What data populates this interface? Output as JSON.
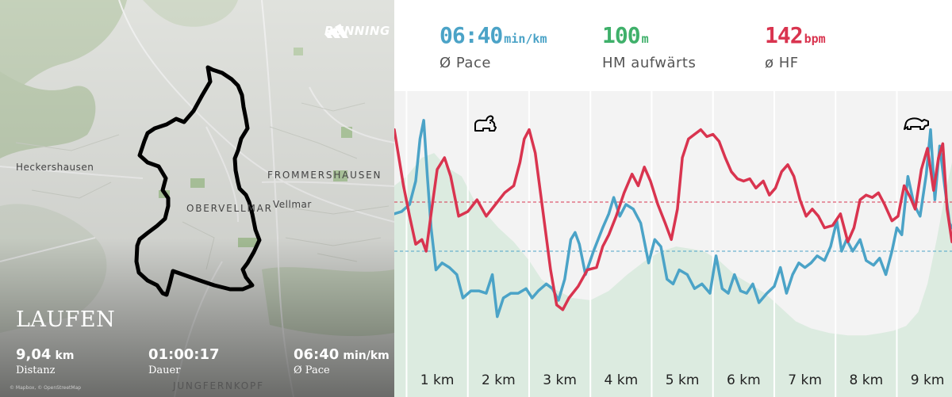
{
  "map": {
    "brand": "RUNNING",
    "places": {
      "heckershausen": "Heckershausen",
      "frommershausen": "FROMMERSHAUSEN",
      "obervellmar": "OBERVELLMAR",
      "vellmar": "Vellmar",
      "jungfernkopf": "JUNGFERNKOPF"
    },
    "activity": "LAUFEN",
    "stats": {
      "distance": {
        "value": "9,04",
        "unit": "km",
        "label": "Distanz"
      },
      "duration": {
        "value": "01:00:17",
        "unit": "",
        "label": "Dauer"
      },
      "pace": {
        "value": "06:40",
        "unit": "min/km",
        "label": "Ø Pace"
      }
    },
    "attribution": "© Mapbox, © OpenStreetMap"
  },
  "header": {
    "pace": {
      "value": "06:40",
      "unit": "min/km",
      "label": "Ø Pace",
      "color": "#4ba3c7"
    },
    "elevation": {
      "value": "100",
      "unit": "m",
      "label": "HM aufwärts",
      "color": "#3fb06a"
    },
    "hr": {
      "value": "142",
      "unit": "bpm",
      "label": "ø HF",
      "color": "#d9344f"
    }
  },
  "chart_data": {
    "type": "line",
    "x_range": [
      0.3,
      9.4
    ],
    "xtick_values": [
      1,
      2,
      3,
      4,
      5,
      6,
      7,
      8,
      9
    ],
    "xtick_labels": [
      "1 km",
      "2 km",
      "3 km",
      "4 km",
      "5 km",
      "6 km",
      "7 km",
      "8 km",
      "9 km"
    ],
    "grid_x": true,
    "icons": {
      "fast": "rabbit-icon",
      "slow": "turtle-icon"
    },
    "elevation": {
      "color": "#dcebe0",
      "values": [
        [
          0.3,
          0.68
        ],
        [
          0.5,
          0.72
        ],
        [
          0.75,
          0.8
        ],
        [
          0.95,
          0.82
        ],
        [
          1.15,
          0.76
        ],
        [
          1.4,
          0.72
        ],
        [
          1.6,
          0.62
        ],
        [
          1.8,
          0.56
        ],
        [
          2.0,
          0.5
        ],
        [
          2.25,
          0.44
        ],
        [
          2.5,
          0.36
        ],
        [
          2.7,
          0.28
        ],
        [
          2.9,
          0.24
        ],
        [
          3.2,
          0.2
        ],
        [
          3.5,
          0.19
        ],
        [
          3.8,
          0.23
        ],
        [
          4.1,
          0.3
        ],
        [
          4.4,
          0.36
        ],
        [
          4.65,
          0.4
        ],
        [
          4.9,
          0.42
        ],
        [
          5.15,
          0.41
        ],
        [
          5.35,
          0.4
        ],
        [
          5.6,
          0.36
        ],
        [
          5.85,
          0.3
        ],
        [
          6.1,
          0.26
        ],
        [
          6.35,
          0.22
        ],
        [
          6.6,
          0.16
        ],
        [
          6.85,
          0.1
        ],
        [
          7.1,
          0.07
        ],
        [
          7.4,
          0.05
        ],
        [
          7.7,
          0.04
        ],
        [
          8.0,
          0.04
        ],
        [
          8.25,
          0.05
        ],
        [
          8.45,
          0.06
        ],
        [
          8.65,
          0.08
        ],
        [
          8.85,
          0.14
        ],
        [
          9.0,
          0.26
        ],
        [
          9.15,
          0.45
        ],
        [
          9.3,
          0.66
        ],
        [
          9.4,
          0.78
        ]
      ]
    },
    "series": [
      {
        "color": "#d9344f",
        "mean": 0.61,
        "values": [
          [
            0.3,
            0.92
          ],
          [
            0.45,
            0.68
          ],
          [
            0.55,
            0.55
          ],
          [
            0.65,
            0.43
          ],
          [
            0.75,
            0.45
          ],
          [
            0.82,
            0.4
          ],
          [
            0.9,
            0.56
          ],
          [
            1.0,
            0.75
          ],
          [
            1.12,
            0.8
          ],
          [
            1.22,
            0.72
          ],
          [
            1.35,
            0.55
          ],
          [
            1.5,
            0.57
          ],
          [
            1.65,
            0.62
          ],
          [
            1.8,
            0.55
          ],
          [
            1.95,
            0.6
          ],
          [
            2.1,
            0.65
          ],
          [
            2.25,
            0.68
          ],
          [
            2.35,
            0.78
          ],
          [
            2.42,
            0.88
          ],
          [
            2.5,
            0.92
          ],
          [
            2.6,
            0.82
          ],
          [
            2.72,
            0.58
          ],
          [
            2.85,
            0.32
          ],
          [
            2.95,
            0.17
          ],
          [
            3.05,
            0.15
          ],
          [
            3.15,
            0.2
          ],
          [
            3.3,
            0.25
          ],
          [
            3.45,
            0.32
          ],
          [
            3.6,
            0.33
          ],
          [
            3.7,
            0.42
          ],
          [
            3.8,
            0.47
          ],
          [
            3.92,
            0.55
          ],
          [
            4.05,
            0.65
          ],
          [
            4.18,
            0.73
          ],
          [
            4.28,
            0.68
          ],
          [
            4.38,
            0.76
          ],
          [
            4.48,
            0.7
          ],
          [
            4.6,
            0.6
          ],
          [
            4.72,
            0.52
          ],
          [
            4.82,
            0.45
          ],
          [
            4.92,
            0.58
          ],
          [
            5.0,
            0.8
          ],
          [
            5.1,
            0.88
          ],
          [
            5.2,
            0.9
          ],
          [
            5.3,
            0.92
          ],
          [
            5.4,
            0.89
          ],
          [
            5.5,
            0.9
          ],
          [
            5.6,
            0.87
          ],
          [
            5.7,
            0.8
          ],
          [
            5.8,
            0.74
          ],
          [
            5.9,
            0.71
          ],
          [
            6.0,
            0.7
          ],
          [
            6.1,
            0.71
          ],
          [
            6.2,
            0.67
          ],
          [
            6.32,
            0.7
          ],
          [
            6.42,
            0.64
          ],
          [
            6.52,
            0.67
          ],
          [
            6.62,
            0.74
          ],
          [
            6.72,
            0.77
          ],
          [
            6.82,
            0.72
          ],
          [
            6.92,
            0.62
          ],
          [
            7.02,
            0.55
          ],
          [
            7.12,
            0.58
          ],
          [
            7.22,
            0.55
          ],
          [
            7.32,
            0.5
          ],
          [
            7.45,
            0.51
          ],
          [
            7.58,
            0.56
          ],
          [
            7.7,
            0.44
          ],
          [
            7.8,
            0.5
          ],
          [
            7.9,
            0.62
          ],
          [
            8.0,
            0.64
          ],
          [
            8.1,
            0.63
          ],
          [
            8.2,
            0.65
          ],
          [
            8.3,
            0.6
          ],
          [
            8.42,
            0.53
          ],
          [
            8.52,
            0.55
          ],
          [
            8.62,
            0.68
          ],
          [
            8.72,
            0.63
          ],
          [
            8.8,
            0.58
          ],
          [
            8.9,
            0.75
          ],
          [
            9.0,
            0.84
          ],
          [
            9.1,
            0.66
          ],
          [
            9.18,
            0.8
          ],
          [
            9.25,
            0.86
          ],
          [
            9.32,
            0.58
          ],
          [
            9.4,
            0.44
          ]
        ]
      },
      {
        "color": "#4ba3c7",
        "mean": 0.4,
        "values": [
          [
            0.3,
            0.56
          ],
          [
            0.42,
            0.57
          ],
          [
            0.55,
            0.6
          ],
          [
            0.65,
            0.7
          ],
          [
            0.72,
            0.88
          ],
          [
            0.78,
            0.96
          ],
          [
            0.84,
            0.72
          ],
          [
            0.9,
            0.5
          ],
          [
            0.98,
            0.32
          ],
          [
            1.08,
            0.35
          ],
          [
            1.2,
            0.33
          ],
          [
            1.32,
            0.3
          ],
          [
            1.42,
            0.2
          ],
          [
            1.55,
            0.23
          ],
          [
            1.68,
            0.23
          ],
          [
            1.8,
            0.22
          ],
          [
            1.9,
            0.3
          ],
          [
            1.98,
            0.12
          ],
          [
            2.08,
            0.2
          ],
          [
            2.2,
            0.22
          ],
          [
            2.32,
            0.22
          ],
          [
            2.45,
            0.24
          ],
          [
            2.55,
            0.2
          ],
          [
            2.65,
            0.23
          ],
          [
            2.78,
            0.26
          ],
          [
            2.88,
            0.24
          ],
          [
            2.98,
            0.19
          ],
          [
            3.08,
            0.28
          ],
          [
            3.18,
            0.45
          ],
          [
            3.25,
            0.48
          ],
          [
            3.32,
            0.43
          ],
          [
            3.42,
            0.3
          ],
          [
            3.55,
            0.4
          ],
          [
            3.7,
            0.5
          ],
          [
            3.8,
            0.56
          ],
          [
            3.88,
            0.63
          ],
          [
            3.98,
            0.55
          ],
          [
            4.08,
            0.6
          ],
          [
            4.2,
            0.58
          ],
          [
            4.32,
            0.52
          ],
          [
            4.45,
            0.35
          ],
          [
            4.55,
            0.45
          ],
          [
            4.65,
            0.42
          ],
          [
            4.75,
            0.28
          ],
          [
            4.85,
            0.26
          ],
          [
            4.95,
            0.32
          ],
          [
            5.08,
            0.3
          ],
          [
            5.2,
            0.24
          ],
          [
            5.32,
            0.26
          ],
          [
            5.45,
            0.22
          ],
          [
            5.55,
            0.38
          ],
          [
            5.65,
            0.24
          ],
          [
            5.75,
            0.22
          ],
          [
            5.85,
            0.3
          ],
          [
            5.95,
            0.23
          ],
          [
            6.05,
            0.22
          ],
          [
            6.15,
            0.26
          ],
          [
            6.25,
            0.18
          ],
          [
            6.38,
            0.22
          ],
          [
            6.5,
            0.25
          ],
          [
            6.6,
            0.33
          ],
          [
            6.7,
            0.22
          ],
          [
            6.8,
            0.3
          ],
          [
            6.9,
            0.35
          ],
          [
            7.0,
            0.33
          ],
          [
            7.1,
            0.35
          ],
          [
            7.2,
            0.38
          ],
          [
            7.32,
            0.36
          ],
          [
            7.42,
            0.42
          ],
          [
            7.52,
            0.53
          ],
          [
            7.6,
            0.4
          ],
          [
            7.68,
            0.45
          ],
          [
            7.78,
            0.4
          ],
          [
            7.9,
            0.45
          ],
          [
            8.0,
            0.36
          ],
          [
            8.12,
            0.34
          ],
          [
            8.22,
            0.37
          ],
          [
            8.32,
            0.3
          ],
          [
            8.42,
            0.4
          ],
          [
            8.5,
            0.5
          ],
          [
            8.58,
            0.47
          ],
          [
            8.68,
            0.72
          ],
          [
            8.78,
            0.6
          ],
          [
            8.88,
            0.55
          ],
          [
            8.98,
            0.73
          ],
          [
            9.05,
            0.92
          ],
          [
            9.12,
            0.62
          ],
          [
            9.2,
            0.85
          ],
          [
            9.28,
            0.68
          ],
          [
            9.36,
            0.52
          ],
          [
            9.4,
            0.5
          ]
        ]
      }
    ]
  }
}
